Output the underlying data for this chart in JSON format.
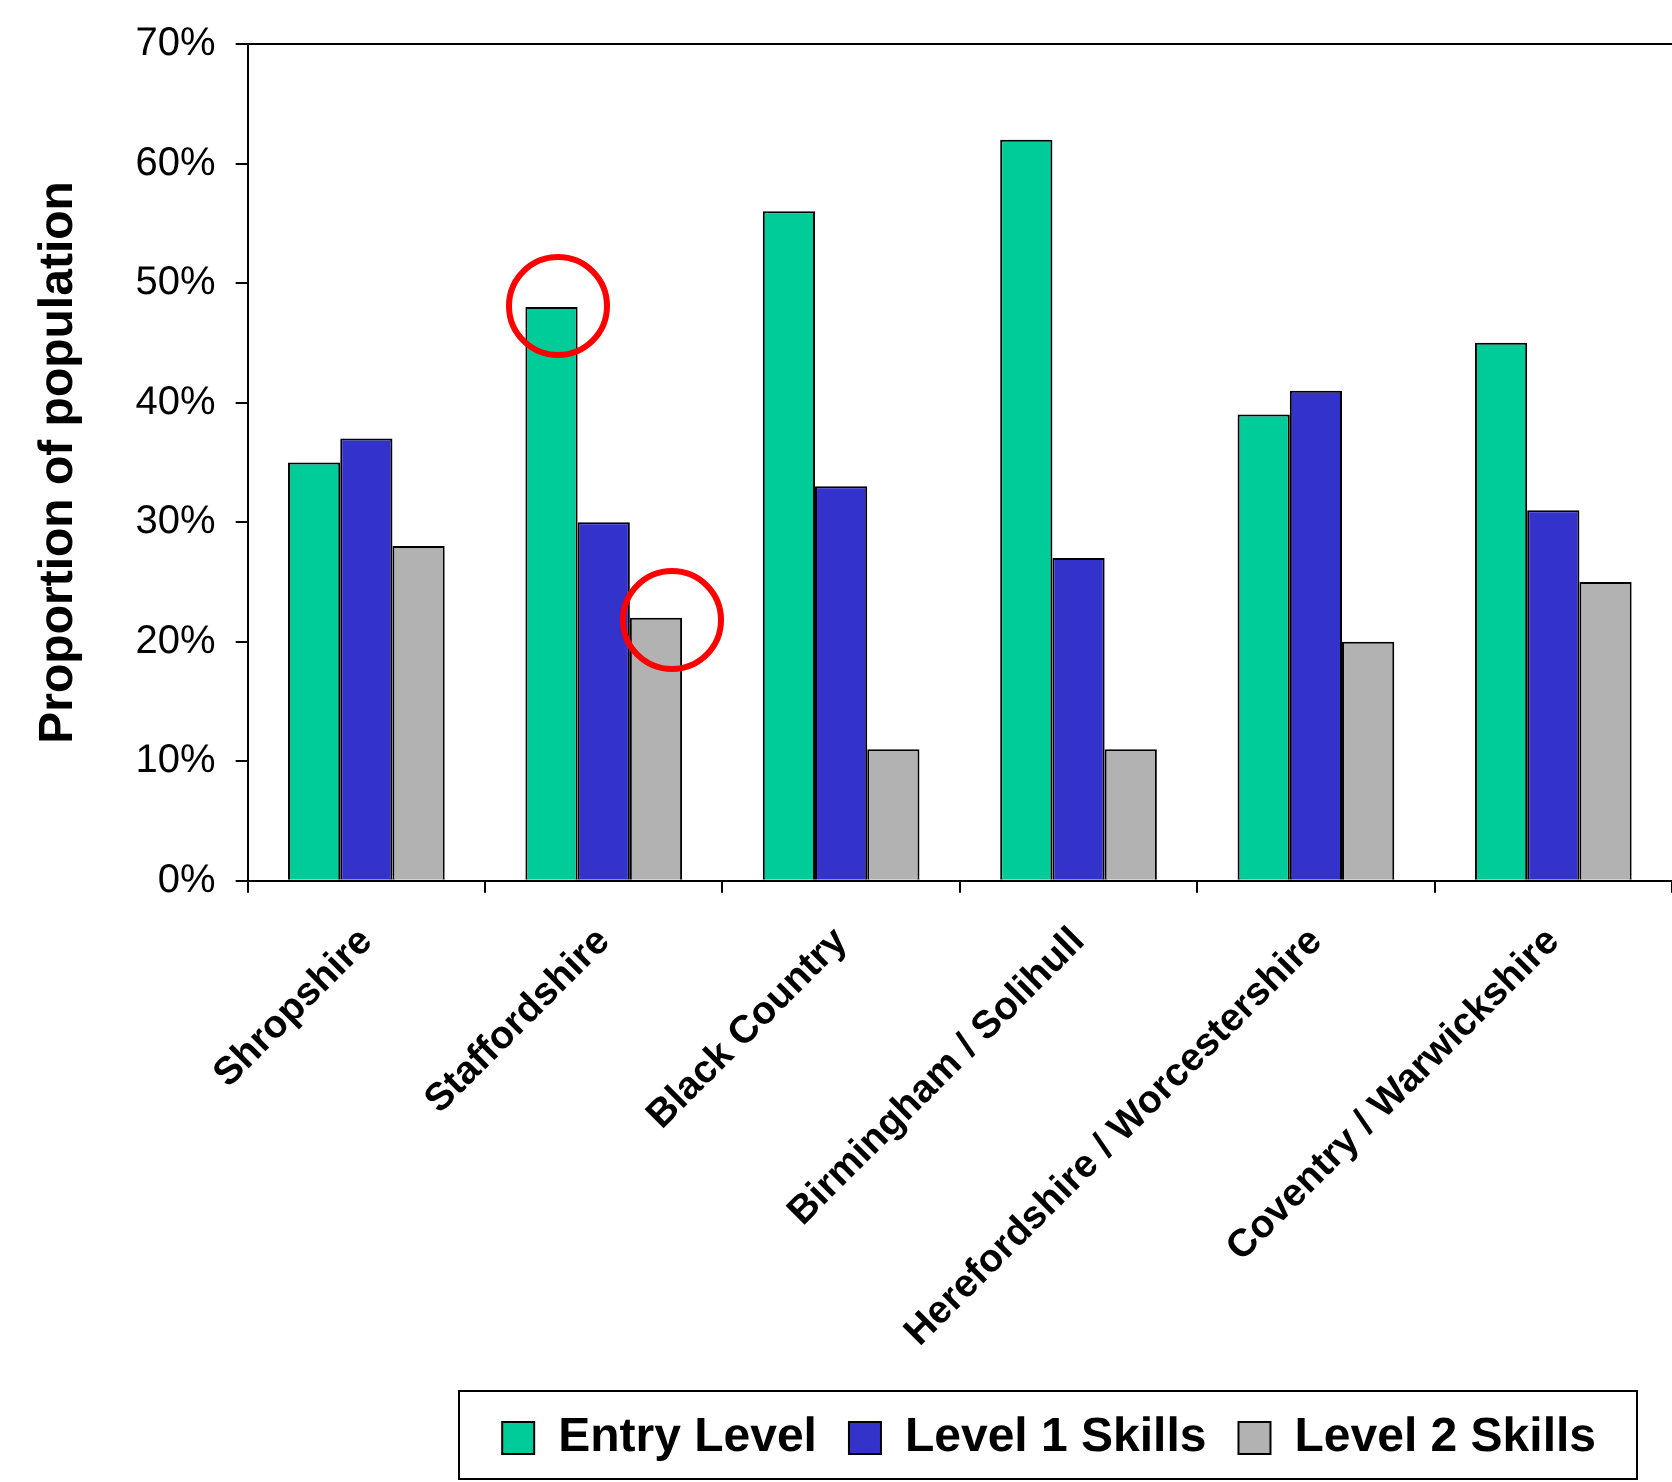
{
  "chart_data": {
    "type": "bar",
    "ylabel": "Proportion of population",
    "categories": [
      "Shropshire",
      "Staffordshire",
      "Black Country",
      "Birmingham / Solihull",
      "Herefordshire / Worcestershire",
      "Coventry / Warwickshire"
    ],
    "series": [
      {
        "name": "Entry Level",
        "color": "#00cc99",
        "values": [
          35,
          48,
          56,
          62,
          39,
          45
        ]
      },
      {
        "name": "Level 1 Skills",
        "color": "#3333cc",
        "values": [
          37,
          30,
          33,
          27,
          41,
          31
        ]
      },
      {
        "name": "Level 2 Skills",
        "color": "#b2b2b2",
        "values": [
          28,
          22,
          11,
          11,
          20,
          25
        ]
      }
    ],
    "ylim": [
      0,
      70
    ],
    "yticks": [
      {
        "value": 0,
        "label": "0%"
      },
      {
        "value": 10,
        "label": "10%"
      },
      {
        "value": 20,
        "label": "20%"
      },
      {
        "value": 30,
        "label": "30%"
      },
      {
        "value": 40,
        "label": "40%"
      },
      {
        "value": 50,
        "label": "50%"
      },
      {
        "value": 60,
        "label": "60%"
      },
      {
        "value": 70,
        "label": "70%"
      }
    ],
    "legend": "bottom right"
  }
}
